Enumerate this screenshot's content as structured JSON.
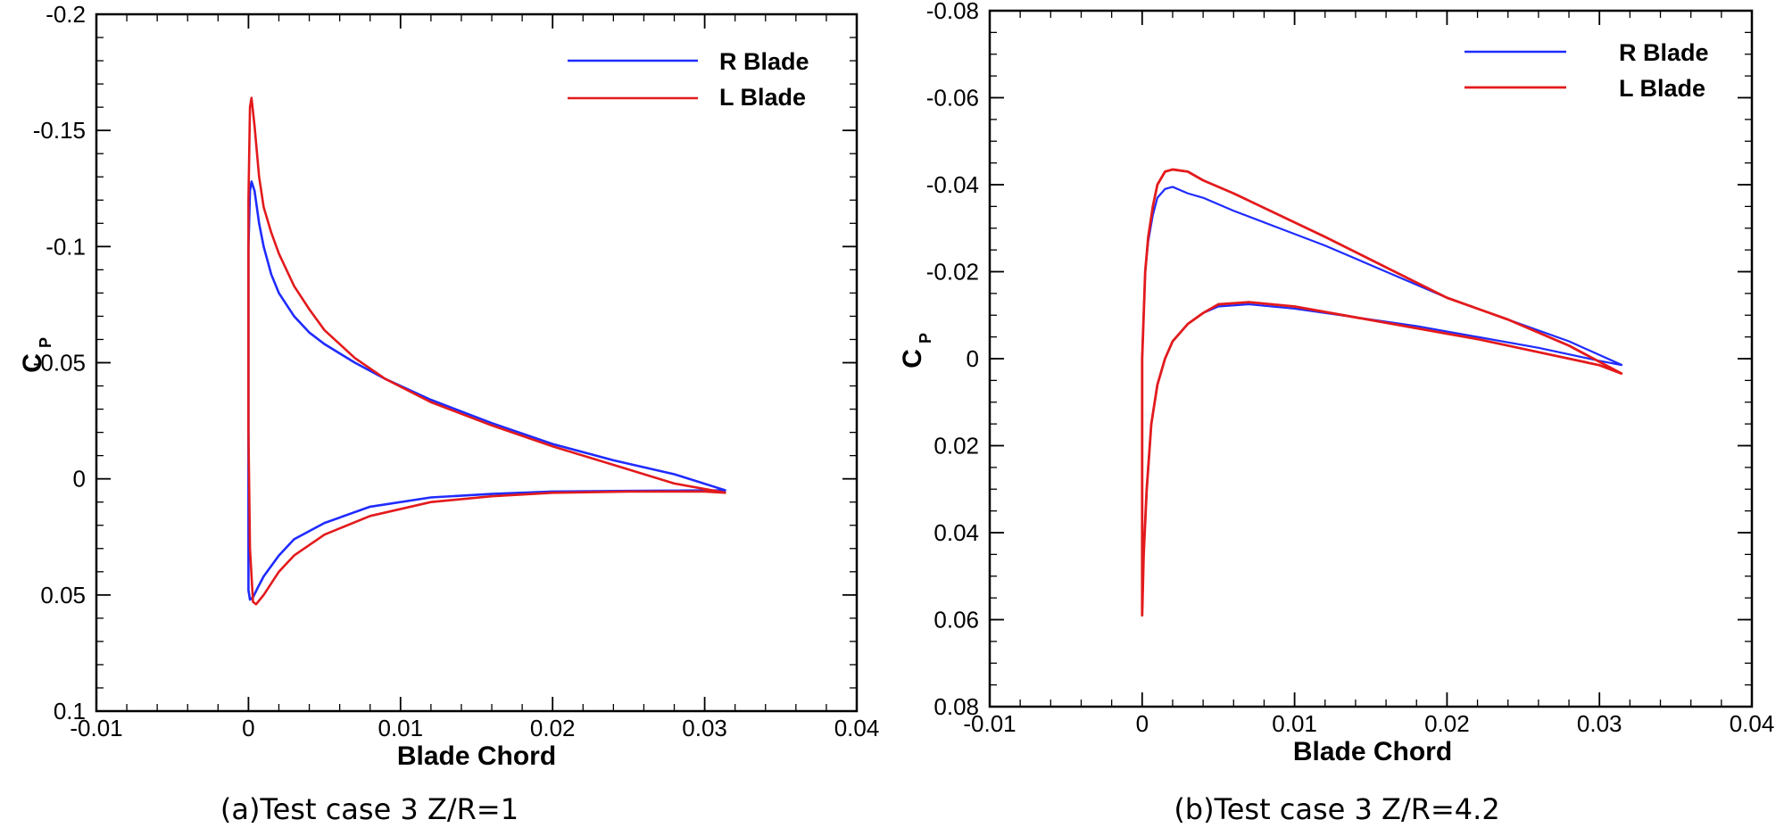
{
  "chart_data": [
    {
      "type": "line",
      "panel": "left",
      "caption": "(a)Test case 3 Z/R=1",
      "xlabel": "Blade Chord",
      "ylabel": "C",
      "ylabel_sub": "P",
      "xlim": [
        -0.01,
        0.04
      ],
      "ylim": [
        -0.2,
        0.1
      ],
      "y_inverted": true,
      "xticks": [
        -0.01,
        0,
        0.01,
        0.02,
        0.03,
        0.04
      ],
      "xtick_labels": [
        "-0.01",
        "0",
        "0.01",
        "0.02",
        "0.03",
        "0.04"
      ],
      "xminor_step": 0.002,
      "yticks": [
        -0.2,
        -0.15,
        -0.1,
        -0.05,
        0,
        0.05,
        0.1
      ],
      "ytick_labels": [
        "-0.2",
        "-0.15",
        "-0.1",
        "-0.05",
        "0",
        "0.05",
        "0.1"
      ],
      "yminor_step": 0.01,
      "grid": false,
      "legend_position": "top-right",
      "series": [
        {
          "name": "R Blade",
          "color": "#1f2bff",
          "x": [
            0.0314,
            0.028,
            0.024,
            0.02,
            0.016,
            0.012,
            0.009,
            0.007,
            0.005,
            0.004,
            0.003,
            0.002,
            0.0015,
            0.001,
            0.0007,
            0.0004,
            0.0002,
            0.0001,
            0.0,
            0.0,
            0.0,
            0.0001,
            0.0003,
            0.0006,
            0.001,
            0.002,
            0.003,
            0.005,
            0.008,
            0.012,
            0.016,
            0.02,
            0.025,
            0.03,
            0.0314
          ],
          "y": [
            0.005,
            -0.002,
            -0.008,
            -0.015,
            -0.024,
            -0.034,
            -0.043,
            -0.05,
            -0.058,
            -0.063,
            -0.07,
            -0.08,
            -0.088,
            -0.1,
            -0.11,
            -0.124,
            -0.128,
            -0.124,
            -0.1,
            -0.02,
            0.048,
            0.052,
            0.051,
            0.047,
            0.042,
            0.033,
            0.026,
            0.019,
            0.012,
            0.008,
            0.0065,
            0.0055,
            0.0052,
            0.005,
            0.005
          ]
        },
        {
          "name": "L Blade",
          "color": "#e31a1c",
          "x": [
            0.0314,
            0.028,
            0.024,
            0.02,
            0.016,
            0.012,
            0.009,
            0.007,
            0.005,
            0.004,
            0.003,
            0.002,
            0.0015,
            0.001,
            0.0007,
            0.0004,
            0.0002,
            0.0001,
            0.0,
            0.0,
            0.0001,
            0.0003,
            0.0005,
            0.001,
            0.002,
            0.003,
            0.005,
            0.008,
            0.012,
            0.016,
            0.02,
            0.025,
            0.03,
            0.0314
          ],
          "y": [
            0.006,
            0.002,
            -0.006,
            -0.014,
            -0.023,
            -0.033,
            -0.043,
            -0.052,
            -0.064,
            -0.073,
            -0.083,
            -0.097,
            -0.106,
            -0.117,
            -0.13,
            -0.152,
            -0.164,
            -0.16,
            -0.12,
            -0.02,
            0.03,
            0.053,
            0.054,
            0.05,
            0.04,
            0.033,
            0.024,
            0.016,
            0.01,
            0.0075,
            0.006,
            0.0055,
            0.0055,
            0.006
          ]
        }
      ]
    },
    {
      "type": "line",
      "panel": "right",
      "caption": "(b)Test case 3 Z/R=4.2",
      "xlabel": "Blade Chord",
      "ylabel": "C",
      "ylabel_sub": "P",
      "xlim": [
        -0.01,
        0.04
      ],
      "ylim": [
        -0.08,
        0.08
      ],
      "y_inverted": true,
      "xticks": [
        -0.01,
        0,
        0.01,
        0.02,
        0.03,
        0.04
      ],
      "xtick_labels": [
        "-0.01",
        "0",
        "0.01",
        "0.02",
        "0.03",
        "0.04"
      ],
      "xminor_step": 0.002,
      "yticks": [
        -0.08,
        -0.06,
        -0.04,
        -0.02,
        0,
        0.02,
        0.04,
        0.06,
        0.08
      ],
      "ytick_labels": [
        "-0.08",
        "-0.06",
        "-0.04",
        "-0.02",
        "0",
        "0.02",
        "0.04",
        "0.06",
        "0.08"
      ],
      "yminor_step": 0.005,
      "grid": false,
      "legend_position": "top-right",
      "series": [
        {
          "name": "R Blade",
          "color": "#1f2bff",
          "x": [
            0.0315,
            0.028,
            0.024,
            0.02,
            0.016,
            0.012,
            0.009,
            0.006,
            0.004,
            0.003,
            0.002,
            0.0015,
            0.001,
            0.0007,
            0.0004,
            0.0002,
            0.0001,
            0.0,
            0.0,
            0.0,
            0.0001,
            0.0003,
            0.0006,
            0.001,
            0.0015,
            0.002,
            0.003,
            0.004,
            0.005,
            0.007,
            0.01,
            0.014,
            0.018,
            0.022,
            0.026,
            0.03,
            0.0315
          ],
          "y": [
            0.0015,
            -0.004,
            -0.009,
            -0.014,
            -0.02,
            -0.026,
            -0.03,
            -0.034,
            -0.037,
            -0.038,
            -0.0395,
            -0.039,
            -0.037,
            -0.033,
            -0.027,
            -0.02,
            -0.01,
            0.0,
            0.03,
            0.057,
            0.045,
            0.03,
            0.015,
            0.006,
            0.0,
            -0.004,
            -0.008,
            -0.0105,
            -0.012,
            -0.0125,
            -0.0115,
            -0.0095,
            -0.0075,
            -0.005,
            -0.0025,
            0.0005,
            0.0015
          ]
        },
        {
          "name": "L Blade",
          "color": "#e31a1c",
          "x": [
            0.0315,
            0.028,
            0.024,
            0.02,
            0.016,
            0.012,
            0.009,
            0.006,
            0.004,
            0.003,
            0.002,
            0.0015,
            0.001,
            0.0007,
            0.0004,
            0.0002,
            0.0001,
            0.0,
            0.0,
            0.0,
            0.0001,
            0.0003,
            0.0006,
            0.001,
            0.0015,
            0.002,
            0.003,
            0.004,
            0.005,
            0.007,
            0.01,
            0.014,
            0.018,
            0.022,
            0.026,
            0.03,
            0.0315
          ],
          "y": [
            0.0035,
            -0.003,
            -0.009,
            -0.014,
            -0.021,
            -0.028,
            -0.033,
            -0.038,
            -0.041,
            -0.043,
            -0.0435,
            -0.043,
            -0.04,
            -0.035,
            -0.028,
            -0.02,
            -0.01,
            0.0,
            0.03,
            0.059,
            0.045,
            0.03,
            0.015,
            0.006,
            0.0,
            -0.004,
            -0.008,
            -0.0105,
            -0.0125,
            -0.013,
            -0.012,
            -0.0095,
            -0.007,
            -0.0045,
            -0.0015,
            0.0015,
            0.0035
          ]
        }
      ]
    }
  ]
}
